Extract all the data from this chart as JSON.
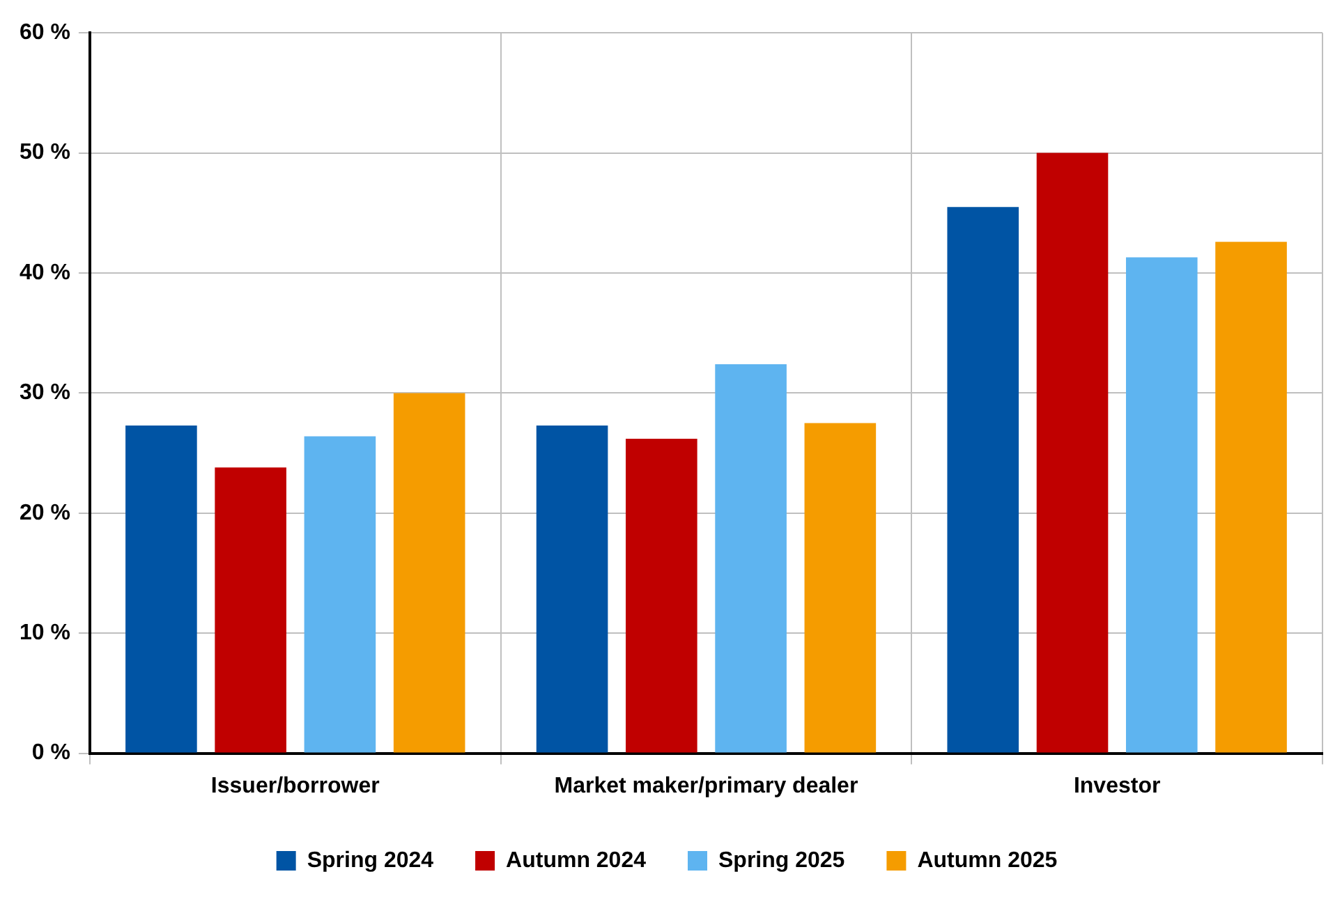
{
  "chart_data": {
    "type": "bar",
    "categories": [
      "Issuer/borrower",
      "Market maker/primary dealer",
      "Investor"
    ],
    "series": [
      {
        "name": "Spring 2024",
        "color": "#0054a4",
        "values": [
          27.3,
          27.3,
          45.5
        ]
      },
      {
        "name": "Autumn 2024",
        "color": "#c00000",
        "values": [
          23.8,
          26.2,
          50.0
        ]
      },
      {
        "name": "Spring 2025",
        "color": "#5eb4f0",
        "values": [
          26.4,
          32.4,
          41.3
        ]
      },
      {
        "name": "Autumn 2025",
        "color": "#f59c00",
        "values": [
          30.0,
          27.5,
          42.6
        ]
      }
    ],
    "ylim": [
      0,
      60
    ],
    "yticks": [
      {
        "value": 0,
        "label": "0 %"
      },
      {
        "value": 10,
        "label": "10 %"
      },
      {
        "value": 20,
        "label": "20 %"
      },
      {
        "value": 30,
        "label": "30 %"
      },
      {
        "value": 40,
        "label": "40 %"
      },
      {
        "value": 50,
        "label": "50 %"
      },
      {
        "value": 60,
        "label": "60 %"
      }
    ],
    "grid": true,
    "legend": "bottom"
  }
}
